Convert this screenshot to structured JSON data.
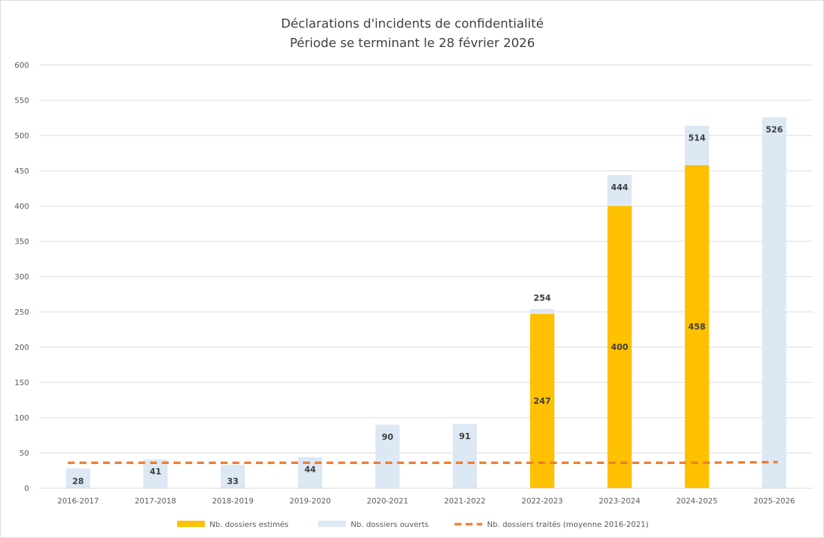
{
  "chart_data": {
    "type": "bar",
    "title": "Déclarations d'incidents de confidentialité",
    "subtitle": "Période se terminant le 28 février 2026",
    "categories": [
      "2016-2017",
      "2017-2018",
      "2018-2019",
      "2019-2020",
      "2020-2021",
      "2021-2022",
      "2022-2023",
      "2023-2024",
      "2024-2025",
      "2025-2026"
    ],
    "ylim": [
      0,
      600
    ],
    "yticks": [
      0,
      50,
      100,
      150,
      200,
      250,
      300,
      350,
      400,
      450,
      500,
      550,
      600
    ],
    "grid": true,
    "legend_position": "bottom",
    "series": [
      {
        "name": "Nb. dossiers ouverts",
        "kind": "bar",
        "color": "#dde8f5",
        "values": [
          28,
          41,
          33,
          44,
          90,
          91,
          254,
          444,
          514,
          526
        ]
      },
      {
        "name": "Nb. dossiers estimés",
        "kind": "bar",
        "color": "#ffc000",
        "values": [
          null,
          null,
          null,
          null,
          null,
          null,
          247,
          400,
          458,
          null
        ]
      },
      {
        "name": "Nb. dossiers traités (moyenne 2016-2021)",
        "kind": "line",
        "color": "#ed7d31",
        "dash": true,
        "values": [
          36,
          36,
          36,
          36,
          36,
          36,
          36,
          36,
          36,
          37
        ]
      }
    ],
    "legend_order": [
      "Nb. dossiers estimés",
      "Nb. dossiers ouverts",
      "Nb. dossiers traités (moyenne 2016-2021)"
    ]
  }
}
